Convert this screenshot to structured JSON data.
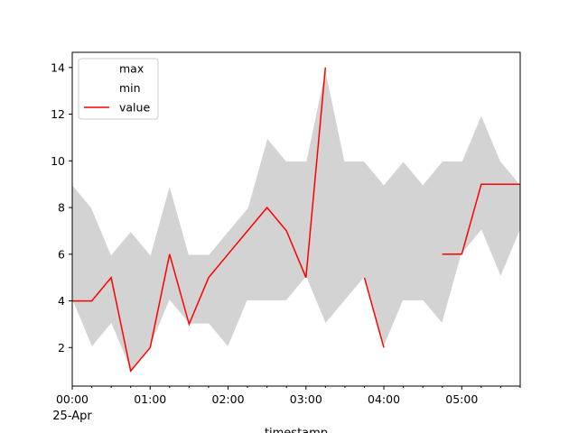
{
  "chart_data": {
    "type": "area",
    "xlabel": "timestamp",
    "ylabel": "",
    "xlim": [
      0,
      345
    ],
    "ylim": [
      0.35,
      14.65
    ],
    "x_unit": "minutes",
    "x_tick_values": [
      0,
      60,
      120,
      180,
      240,
      300
    ],
    "x_tick_labels": [
      "00:00",
      "01:00",
      "02:00",
      "03:00",
      "04:00",
      "05:00"
    ],
    "x_date_label": "25-Apr",
    "y_ticks": [
      2,
      4,
      6,
      8,
      10,
      12,
      14
    ],
    "x": [
      0,
      15,
      30,
      45,
      60,
      75,
      90,
      105,
      120,
      135,
      150,
      165,
      180,
      195,
      210,
      225,
      240,
      255,
      270,
      285,
      300,
      315,
      330,
      345
    ],
    "series": [
      {
        "name": "max",
        "color": "#ffffff",
        "values": [
          9,
          8,
          6,
          7,
          6,
          9,
          6,
          6,
          7,
          8,
          11,
          10,
          10,
          14,
          10,
          10,
          9,
          10,
          9,
          10,
          10,
          12,
          10,
          9
        ]
      },
      {
        "name": "min",
        "color": "#ffffff",
        "values": [
          4,
          2,
          3,
          1,
          2,
          4,
          3,
          3,
          2,
          4,
          4,
          4,
          5,
          3,
          4,
          5,
          2,
          4,
          4,
          3,
          6,
          7,
          5,
          7
        ]
      },
      {
        "name": "value",
        "color": "#ff0000",
        "values": [
          4,
          4,
          5,
          1,
          2,
          6,
          3,
          5,
          6,
          7,
          8,
          7,
          5,
          14,
          null,
          5,
          2,
          null,
          null,
          6,
          6,
          9,
          9,
          9
        ]
      }
    ],
    "fill_color": "#d3d3d3",
    "legend_position": "top-left",
    "grid": false
  }
}
